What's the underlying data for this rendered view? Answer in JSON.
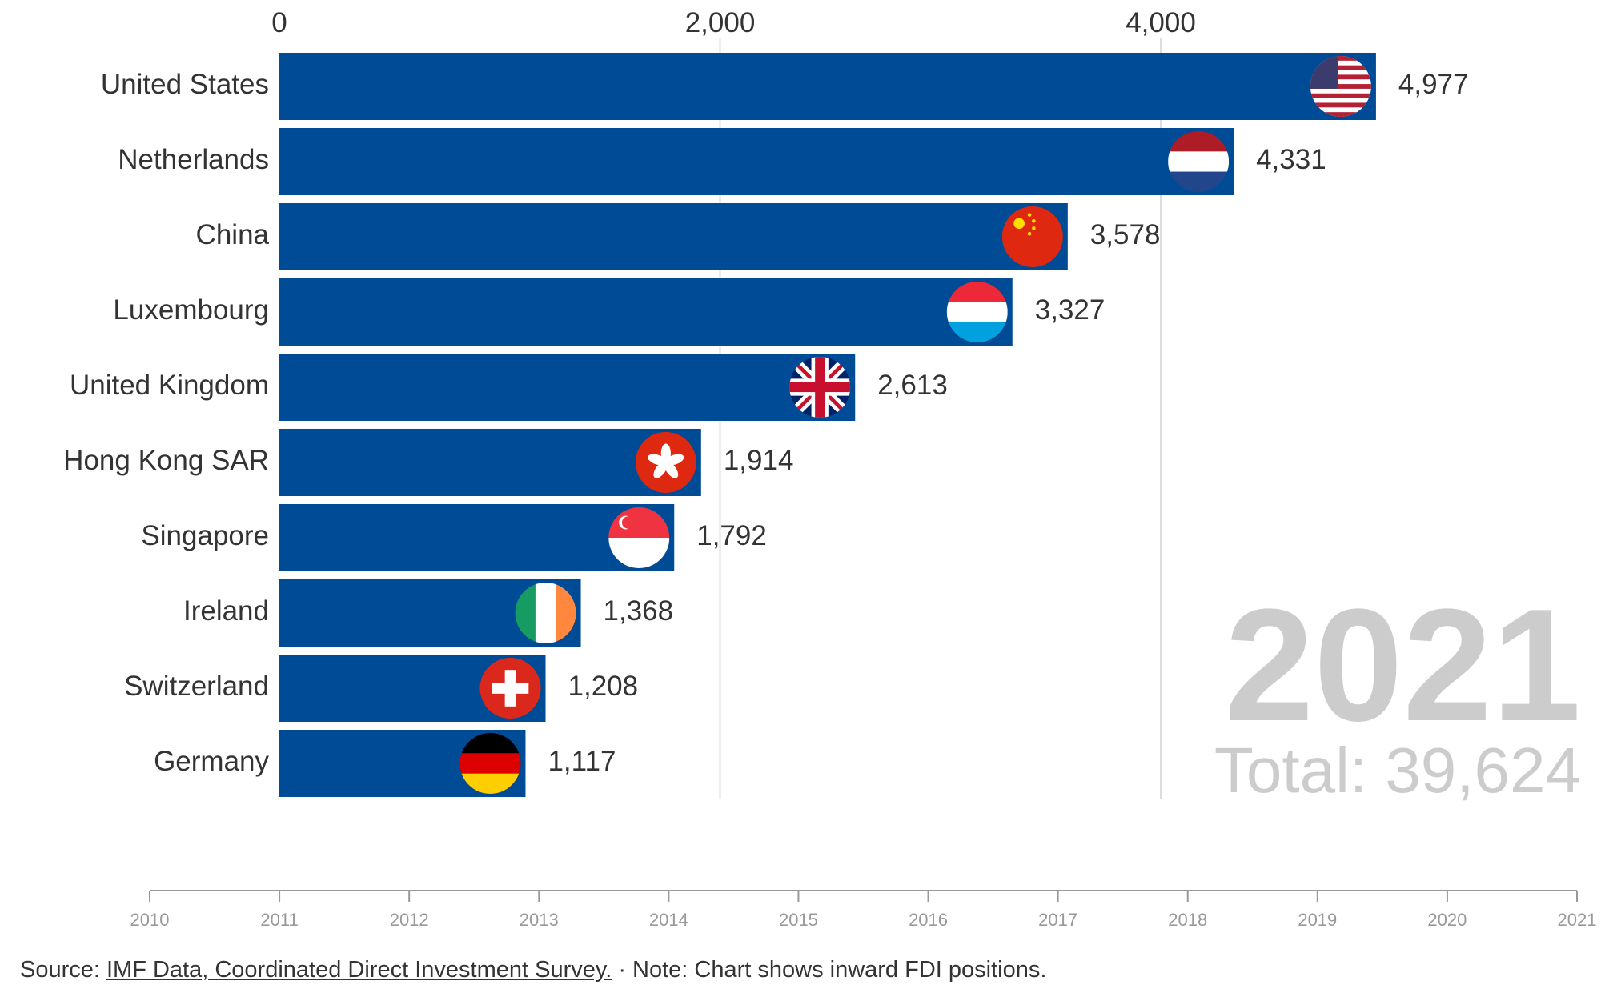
{
  "chart_data": {
    "type": "bar",
    "orientation": "horizontal",
    "categories": [
      "United States",
      "Netherlands",
      "China",
      "Luxembourg",
      "United Kingdom",
      "Hong Kong SAR",
      "Singapore",
      "Ireland",
      "Switzerland",
      "Germany"
    ],
    "values": [
      4977,
      4331,
      3578,
      3327,
      2613,
      1914,
      1792,
      1368,
      1208,
      1117
    ],
    "value_labels": [
      "4,977",
      "4,331",
      "3,578",
      "3,327",
      "2,613",
      "1,914",
      "1,792",
      "1,368",
      "1,208",
      "1,117"
    ],
    "flags": [
      "us-flag",
      "netherlands-flag",
      "china-flag",
      "luxembourg-flag",
      "uk-flag",
      "hong-kong-flag",
      "singapore-flag",
      "ireland-flag",
      "switzerland-flag",
      "germany-flag"
    ],
    "xlim": [
      0,
      5000
    ],
    "xticks": [
      0,
      2000,
      4000
    ],
    "xtick_labels": [
      "0",
      "2,000",
      "4,000"
    ],
    "bar_color": "#004b96",
    "year": "2021",
    "total_label": "Total: 39,624",
    "timeline_years": [
      "2010",
      "2011",
      "2012",
      "2013",
      "2014",
      "2015",
      "2016",
      "2017",
      "2018",
      "2019",
      "2020",
      "2021"
    ]
  },
  "footer": {
    "source_prefix": "Source: ",
    "source_link": "IMF Data, Coordinated Direct Investment Survey.",
    "note": " · Note: Chart shows inward FDI positions."
  }
}
